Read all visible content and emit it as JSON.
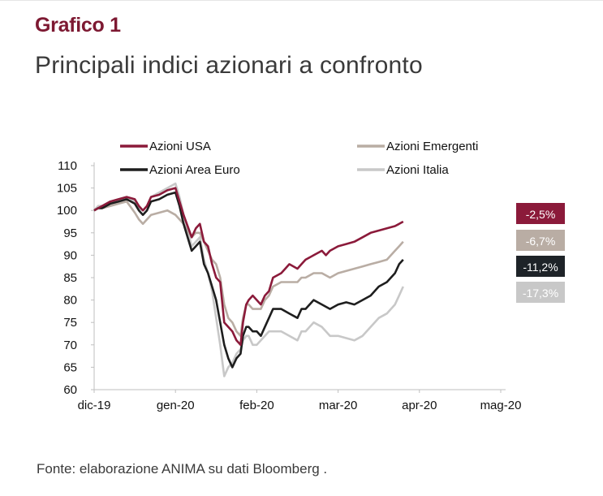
{
  "header": {
    "kicker": "Grafico 1",
    "title": "Principali indici azionari a confronto"
  },
  "footer": {
    "source": "Fonte: elaborazione ANIMA su dati Bloomberg ."
  },
  "chart_data": {
    "type": "line",
    "title": "Principali indici azionari a confronto",
    "xlabel": "",
    "ylabel": "",
    "ylim": [
      60,
      110
    ],
    "yticks": [
      60,
      65,
      70,
      75,
      80,
      85,
      90,
      95,
      100,
      105,
      110
    ],
    "xticks": [
      "dic-19",
      "gen-20",
      "feb-20",
      "mar-20",
      "apr-20",
      "mag-20"
    ],
    "x_start": "dic-19",
    "x_end": "mag-20",
    "grid": false,
    "legend": "top",
    "series": [
      {
        "name": "Azioni USA",
        "color": "#8b1a3a",
        "end_label": "-2,5%",
        "values": [
          [
            0,
            100
          ],
          [
            0.05,
            100.5
          ],
          [
            0.1,
            101
          ],
          [
            0.2,
            102
          ],
          [
            0.3,
            102.5
          ],
          [
            0.4,
            103
          ],
          [
            0.5,
            102.5
          ],
          [
            0.55,
            101
          ],
          [
            0.6,
            100
          ],
          [
            0.65,
            101
          ],
          [
            0.7,
            103
          ],
          [
            0.8,
            103.5
          ],
          [
            0.9,
            104.5
          ],
          [
            1.0,
            105
          ],
          [
            1.05,
            102
          ],
          [
            1.1,
            99
          ],
          [
            1.2,
            94
          ],
          [
            1.25,
            96
          ],
          [
            1.3,
            97
          ],
          [
            1.35,
            93
          ],
          [
            1.4,
            92
          ],
          [
            1.45,
            88
          ],
          [
            1.5,
            85
          ],
          [
            1.55,
            84
          ],
          [
            1.6,
            75
          ],
          [
            1.65,
            74
          ],
          [
            1.7,
            73
          ],
          [
            1.75,
            71
          ],
          [
            1.8,
            70
          ],
          [
            1.83,
            75
          ],
          [
            1.87,
            79
          ],
          [
            1.9,
            80
          ],
          [
            1.95,
            81
          ],
          [
            2.0,
            80
          ],
          [
            2.05,
            79
          ],
          [
            2.1,
            81
          ],
          [
            2.15,
            82
          ],
          [
            2.2,
            85
          ],
          [
            2.3,
            86
          ],
          [
            2.35,
            87
          ],
          [
            2.4,
            88
          ],
          [
            2.5,
            87
          ],
          [
            2.55,
            88
          ],
          [
            2.6,
            89
          ],
          [
            2.7,
            90
          ],
          [
            2.8,
            91
          ],
          [
            2.85,
            90
          ],
          [
            2.9,
            91
          ],
          [
            3.0,
            92
          ],
          [
            3.1,
            92.5
          ],
          [
            3.2,
            93
          ],
          [
            3.3,
            94
          ],
          [
            3.4,
            95
          ],
          [
            3.5,
            95.5
          ],
          [
            3.6,
            96
          ],
          [
            3.7,
            96.5
          ],
          [
            3.75,
            97
          ],
          [
            3.8,
            97.5
          ]
        ]
      },
      {
        "name": "Azioni Area Euro",
        "color": "#1e1e1e",
        "end_label": "-11,2%",
        "values": [
          [
            0,
            100
          ],
          [
            0.05,
            100.5
          ],
          [
            0.1,
            100.5
          ],
          [
            0.2,
            101.5
          ],
          [
            0.3,
            102
          ],
          [
            0.4,
            102.5
          ],
          [
            0.5,
            101.5
          ],
          [
            0.55,
            100
          ],
          [
            0.6,
            99
          ],
          [
            0.65,
            100
          ],
          [
            0.7,
            102
          ],
          [
            0.8,
            102.5
          ],
          [
            0.9,
            103.5
          ],
          [
            1.0,
            104
          ],
          [
            1.05,
            101
          ],
          [
            1.1,
            97
          ],
          [
            1.2,
            91
          ],
          [
            1.25,
            92
          ],
          [
            1.3,
            93
          ],
          [
            1.35,
            88
          ],
          [
            1.4,
            86
          ],
          [
            1.45,
            83
          ],
          [
            1.5,
            80
          ],
          [
            1.55,
            75
          ],
          [
            1.6,
            70
          ],
          [
            1.65,
            67
          ],
          [
            1.7,
            65
          ],
          [
            1.75,
            67
          ],
          [
            1.8,
            68
          ],
          [
            1.83,
            72
          ],
          [
            1.87,
            74
          ],
          [
            1.9,
            74
          ],
          [
            1.95,
            73
          ],
          [
            2.0,
            73
          ],
          [
            2.05,
            72
          ],
          [
            2.1,
            74
          ],
          [
            2.15,
            76
          ],
          [
            2.2,
            78
          ],
          [
            2.3,
            78
          ],
          [
            2.4,
            77
          ],
          [
            2.5,
            76
          ],
          [
            2.55,
            78
          ],
          [
            2.6,
            78
          ],
          [
            2.7,
            80
          ],
          [
            2.8,
            79
          ],
          [
            2.9,
            78
          ],
          [
            3.0,
            79
          ],
          [
            3.1,
            79.5
          ],
          [
            3.2,
            79
          ],
          [
            3.3,
            80
          ],
          [
            3.4,
            81
          ],
          [
            3.5,
            83
          ],
          [
            3.6,
            84
          ],
          [
            3.7,
            86
          ],
          [
            3.75,
            88
          ],
          [
            3.8,
            89
          ]
        ]
      },
      {
        "name": "Azioni Emergenti",
        "color": "#b9ada4",
        "end_label": "-6,7%",
        "values": [
          [
            0,
            100
          ],
          [
            0.05,
            100.5
          ],
          [
            0.1,
            100.5
          ],
          [
            0.2,
            101
          ],
          [
            0.3,
            101.5
          ],
          [
            0.4,
            102
          ],
          [
            0.5,
            99.5
          ],
          [
            0.55,
            98
          ],
          [
            0.6,
            97
          ],
          [
            0.65,
            98
          ],
          [
            0.7,
            99
          ],
          [
            0.8,
            99.5
          ],
          [
            0.9,
            100
          ],
          [
            1.0,
            99
          ],
          [
            1.05,
            98
          ],
          [
            1.1,
            97
          ],
          [
            1.2,
            94
          ],
          [
            1.25,
            95
          ],
          [
            1.3,
            95
          ],
          [
            1.35,
            93
          ],
          [
            1.4,
            91
          ],
          [
            1.45,
            89
          ],
          [
            1.5,
            88
          ],
          [
            1.55,
            85
          ],
          [
            1.6,
            79
          ],
          [
            1.65,
            76
          ],
          [
            1.7,
            75
          ],
          [
            1.75,
            73
          ],
          [
            1.8,
            72
          ],
          [
            1.83,
            76
          ],
          [
            1.87,
            79
          ],
          [
            1.9,
            79
          ],
          [
            1.95,
            78
          ],
          [
            2.0,
            78
          ],
          [
            2.05,
            78
          ],
          [
            2.1,
            80
          ],
          [
            2.15,
            81
          ],
          [
            2.2,
            83
          ],
          [
            2.3,
            84
          ],
          [
            2.4,
            84
          ],
          [
            2.5,
            84
          ],
          [
            2.55,
            85
          ],
          [
            2.6,
            85
          ],
          [
            2.7,
            86
          ],
          [
            2.8,
            86
          ],
          [
            2.9,
            85
          ],
          [
            3.0,
            86
          ],
          [
            3.1,
            86.5
          ],
          [
            3.2,
            87
          ],
          [
            3.3,
            87.5
          ],
          [
            3.4,
            88
          ],
          [
            3.5,
            88.5
          ],
          [
            3.6,
            89
          ],
          [
            3.7,
            91
          ],
          [
            3.75,
            92
          ],
          [
            3.8,
            93
          ]
        ]
      },
      {
        "name": "Azioni Italia",
        "color": "#c8c8c8",
        "end_label": "-17,3%",
        "values": [
          [
            0,
            100
          ],
          [
            0.05,
            101
          ],
          [
            0.1,
            101
          ],
          [
            0.2,
            102
          ],
          [
            0.3,
            102.5
          ],
          [
            0.4,
            103
          ],
          [
            0.5,
            102
          ],
          [
            0.55,
            100.5
          ],
          [
            0.6,
            100
          ],
          [
            0.65,
            101
          ],
          [
            0.7,
            103
          ],
          [
            0.8,
            104
          ],
          [
            0.9,
            105
          ],
          [
            1.0,
            106
          ],
          [
            1.05,
            103
          ],
          [
            1.1,
            99
          ],
          [
            1.2,
            92
          ],
          [
            1.25,
            93
          ],
          [
            1.3,
            94
          ],
          [
            1.35,
            89
          ],
          [
            1.4,
            86
          ],
          [
            1.45,
            82
          ],
          [
            1.5,
            76
          ],
          [
            1.55,
            70
          ],
          [
            1.6,
            63
          ],
          [
            1.65,
            65
          ],
          [
            1.7,
            66
          ],
          [
            1.75,
            68
          ],
          [
            1.8,
            69
          ],
          [
            1.83,
            71
          ],
          [
            1.87,
            72
          ],
          [
            1.9,
            72
          ],
          [
            1.95,
            70
          ],
          [
            2.0,
            70
          ],
          [
            2.05,
            71
          ],
          [
            2.1,
            72
          ],
          [
            2.15,
            73
          ],
          [
            2.2,
            73
          ],
          [
            2.3,
            73
          ],
          [
            2.4,
            72
          ],
          [
            2.5,
            71
          ],
          [
            2.55,
            73
          ],
          [
            2.6,
            73
          ],
          [
            2.7,
            75
          ],
          [
            2.8,
            74
          ],
          [
            2.9,
            72
          ],
          [
            3.0,
            72
          ],
          [
            3.1,
            71.5
          ],
          [
            3.2,
            71
          ],
          [
            3.3,
            72
          ],
          [
            3.4,
            74
          ],
          [
            3.5,
            76
          ],
          [
            3.6,
            77
          ],
          [
            3.7,
            79
          ],
          [
            3.75,
            81
          ],
          [
            3.8,
            83
          ]
        ]
      }
    ]
  }
}
